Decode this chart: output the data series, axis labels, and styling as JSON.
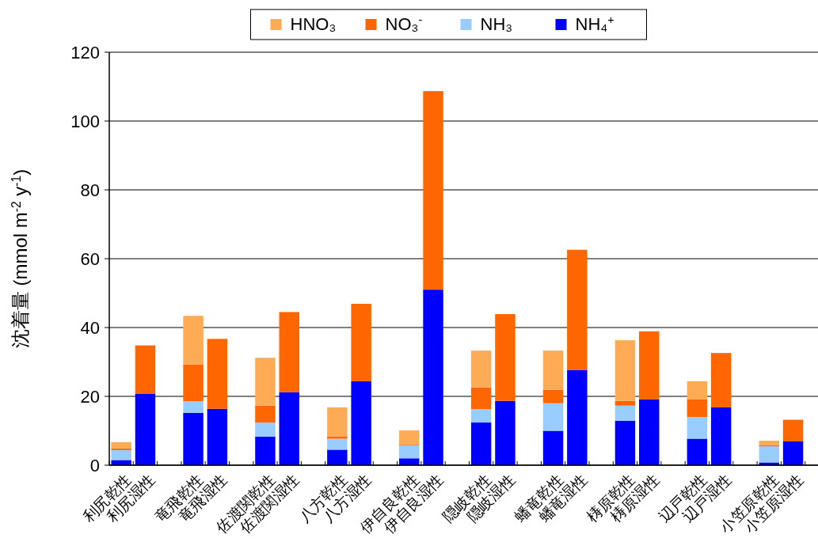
{
  "chart_data": {
    "type": "bar",
    "stacked": true,
    "ylabel": "沈着量 (mmol m$^{-2}$ y$^{-1}$)",
    "categories": [
      "利尻乾性",
      "利尻湿性",
      null,
      "竜飛乾性",
      "竜飛湿性",
      null,
      "佐渡関乾性",
      "佐渡関湿性",
      null,
      "八方乾性",
      "八方湿性",
      null,
      "伊自良乾性",
      "伊自良湿性",
      null,
      "隠岐乾性",
      "隠岐湿性",
      null,
      "蟠竜乾性",
      "蟠竜湿性",
      null,
      "梼原乾性",
      "梼原湿性",
      null,
      "辺戸乾性",
      "辺戸湿性",
      null,
      "小笠原乾性",
      "小笠原湿性"
    ],
    "series": [
      {
        "name": "NH₄$^{+}$",
        "color": "#0000ff",
        "values": [
          1.5,
          20.8,
          null,
          15.2,
          16.4,
          null,
          8.3,
          21.2,
          null,
          4.5,
          24.4,
          null,
          2.0,
          51.0,
          null,
          12.4,
          18.7,
          null,
          10.0,
          27.7,
          null,
          12.9,
          19.1,
          null,
          7.7,
          16.8,
          null,
          0.8,
          6.9
        ]
      },
      {
        "name": "NH₃",
        "color": "#99ccff",
        "values": [
          2.9,
          0,
          null,
          3.4,
          0,
          null,
          4.1,
          0,
          null,
          3.2,
          0,
          null,
          3.8,
          0,
          null,
          3.9,
          0,
          null,
          8.0,
          0,
          null,
          4.4,
          0,
          null,
          6.3,
          0,
          null,
          4.7,
          0
        ]
      },
      {
        "name": "NO₃$^{-}$",
        "color": "#ff6600",
        "values": [
          0.5,
          14.0,
          null,
          10.7,
          20.3,
          null,
          4.9,
          23.3,
          null,
          0.7,
          22.5,
          null,
          0.2,
          57.7,
          null,
          6.3,
          25.2,
          null,
          3.9,
          34.9,
          null,
          1.4,
          19.8,
          null,
          5.1,
          15.8,
          null,
          0.3,
          6.3
        ]
      },
      {
        "name": "HNO₃",
        "color": "#ffaa55",
        "values": [
          1.8,
          0,
          null,
          14.1,
          0,
          null,
          13.9,
          0,
          null,
          8.4,
          0,
          null,
          4.1,
          0,
          null,
          10.7,
          0,
          null,
          11.4,
          0,
          null,
          17.6,
          0,
          null,
          5.3,
          0,
          null,
          1.3,
          0
        ]
      }
    ],
    "ylim": [
      0,
      120
    ],
    "yticks": [
      0,
      20,
      40,
      60,
      80,
      100,
      120
    ],
    "grid": "y",
    "legend": "top"
  }
}
